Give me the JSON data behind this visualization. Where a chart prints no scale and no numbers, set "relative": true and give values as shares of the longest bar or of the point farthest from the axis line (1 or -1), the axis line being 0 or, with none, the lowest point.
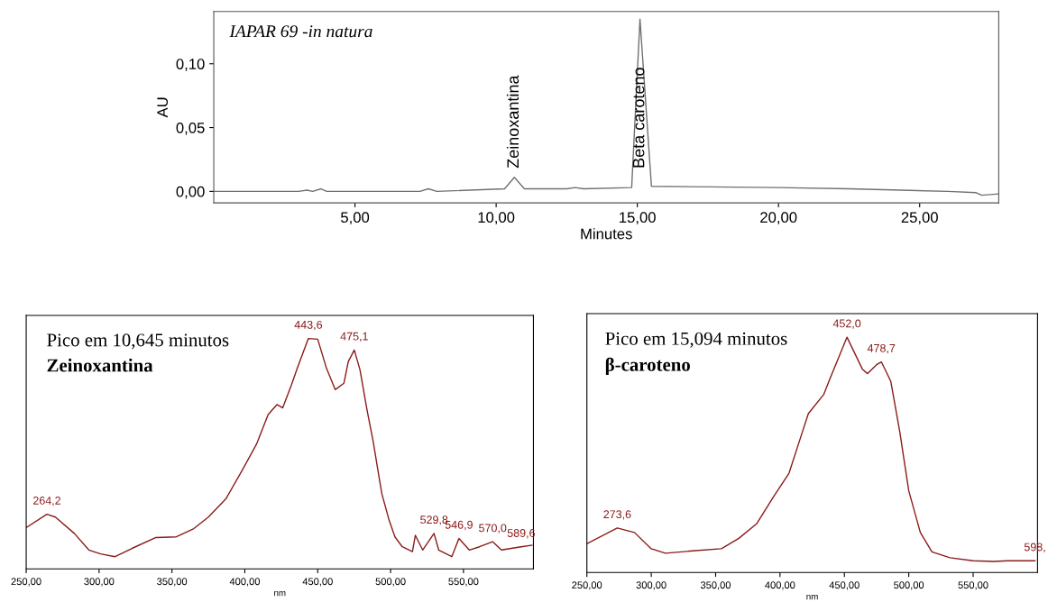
{
  "chart_data": [
    {
      "type": "line",
      "title": "IAPAR 69 -in natura",
      "xlabel": "Minutes",
      "ylabel": "AU",
      "xlim": [
        0,
        27.8
      ],
      "ylim": [
        -0.009,
        0.141
      ],
      "xticks": [
        {
          "value": 5,
          "label": "5,00"
        },
        {
          "value": 10,
          "label": "10,00"
        },
        {
          "value": 15,
          "label": "15,00"
        },
        {
          "value": 20,
          "label": "20,00"
        },
        {
          "value": 25,
          "label": "25,00"
        }
      ],
      "yticks": [
        {
          "value": 0,
          "label": "0,00"
        },
        {
          "value": 0.05,
          "label": "0,05"
        },
        {
          "value": 0.1,
          "label": "0,10"
        }
      ],
      "grid": false,
      "legend": false,
      "series": [
        {
          "color": "#707070",
          "x": [
            0,
            3.0,
            3.3,
            3.5,
            3.8,
            4.0,
            7.3,
            7.6,
            7.9,
            10.3,
            10.645,
            11.0,
            12.5,
            12.8,
            13.1,
            14.8,
            15.094,
            15.5,
            20.0,
            22.5,
            26.0,
            27.0,
            27.2,
            27.8
          ],
          "values": [
            0.0,
            0.0,
            0.001,
            0.0,
            0.002,
            0.0,
            0.0,
            0.002,
            0.0,
            0.002,
            0.011,
            0.002,
            0.002,
            0.003,
            0.002,
            0.003,
            0.135,
            0.004,
            0.003,
            0.002,
            0.0,
            -0.001,
            -0.003,
            -0.002
          ]
        }
      ],
      "annotations": [
        {
          "text": "Zeinoxantina",
          "x": 10.645,
          "y": 0.011
        },
        {
          "text": "Beta caroteno",
          "x": 15.094,
          "y": 0.135
        }
      ]
    },
    {
      "type": "line",
      "title": "Pico em 10,645 minutos",
      "subtitle": "Zeinoxantina",
      "xlabel": "nm",
      "xlim": [
        250,
        598
      ],
      "relative": true,
      "tick_labels": "x",
      "grid": false,
      "legend": false,
      "xticks": [
        {
          "value": 250,
          "label": "250,00"
        },
        {
          "value": 300,
          "label": "300,00"
        },
        {
          "value": 350,
          "label": "350,00"
        },
        {
          "value": 400,
          "label": "400,00"
        },
        {
          "value": 450,
          "label": "450,00"
        },
        {
          "value": 500,
          "label": "500,00"
        },
        {
          "value": 550,
          "label": "550,00"
        }
      ],
      "series": [
        {
          "color": "#8b1a1a",
          "x": [
            250,
            264.2,
            270,
            283,
            293,
            301,
            311,
            322.6,
            339,
            353,
            365,
            375,
            387,
            398,
            408,
            416,
            422,
            426,
            432,
            436,
            443.6,
            450,
            456,
            462,
            468,
            471,
            475.1,
            479,
            484,
            488,
            491,
            494,
            499,
            503,
            508,
            515,
            517,
            522,
            529.8,
            533,
            542,
            546.9,
            554,
            561,
            570,
            576,
            589.6,
            597
          ],
          "values": [
            0.179,
            0.237,
            0.225,
            0.154,
            0.082,
            0.065,
            0.053,
            0.089,
            0.136,
            0.139,
            0.175,
            0.225,
            0.304,
            0.426,
            0.541,
            0.67,
            0.713,
            0.699,
            0.799,
            0.871,
            1.0,
            0.997,
            0.871,
            0.778,
            0.806,
            0.9,
            0.95,
            0.864,
            0.684,
            0.555,
            0.44,
            0.326,
            0.211,
            0.139,
            0.096,
            0.075,
            0.146,
            0.082,
            0.154,
            0.082,
            0.053,
            0.132,
            0.082,
            0.096,
            0.118,
            0.082,
            0.096,
            0.103
          ]
        }
      ],
      "annotations": [
        {
          "text": "264,2",
          "x": 264.2,
          "y": 0.237
        },
        {
          "text": "443,6",
          "x": 443.6,
          "y": 1.0
        },
        {
          "text": "475,1",
          "x": 475.1,
          "y": 0.95
        },
        {
          "text": "529,8",
          "x": 529.8,
          "y": 0.154
        },
        {
          "text": "546,9",
          "x": 546.9,
          "y": 0.132
        },
        {
          "text": "570,0",
          "x": 570,
          "y": 0.118
        },
        {
          "text": "589,6",
          "x": 589.6,
          "y": 0.096
        }
      ]
    },
    {
      "type": "line",
      "title": "Pico em 15,094 minutos",
      "subtitle": "β-caroteno",
      "xlabel": "nm",
      "xlim": [
        250,
        600
      ],
      "relative": true,
      "tick_labels": "x",
      "grid": false,
      "legend": false,
      "xticks": [
        {
          "value": 250,
          "label": "250,00"
        },
        {
          "value": 300,
          "label": "300,00"
        },
        {
          "value": 350,
          "label": "350,00"
        },
        {
          "value": 400,
          "label": "400,00"
        },
        {
          "value": 450,
          "label": "450,00"
        },
        {
          "value": 500,
          "label": "500,00"
        },
        {
          "value": 550,
          "label": "550,00"
        }
      ],
      "series": [
        {
          "color": "#8b1a1a",
          "x": [
            250,
            273.6,
            287,
            300,
            311,
            332,
            354.5,
            368,
            382,
            395,
            407,
            416,
            422,
            434,
            439,
            452,
            464,
            468,
            475,
            478.7,
            486,
            493,
            500,
            509,
            518,
            532,
            550,
            566,
            577,
            592,
            598
          ],
          "values": [
            0.122,
            0.189,
            0.17,
            0.101,
            0.082,
            0.092,
            0.101,
            0.145,
            0.208,
            0.322,
            0.422,
            0.574,
            0.675,
            0.757,
            0.826,
            1.0,
            0.864,
            0.845,
            0.883,
            0.895,
            0.813,
            0.599,
            0.347,
            0.17,
            0.088,
            0.063,
            0.05,
            0.047,
            0.05,
            0.05,
            0.05
          ]
        }
      ],
      "annotations": [
        {
          "text": "273,6",
          "x": 273.6,
          "y": 0.189
        },
        {
          "text": "452,0",
          "x": 452,
          "y": 1.0
        },
        {
          "text": "478,7",
          "x": 478.7,
          "y": 0.895
        },
        {
          "text": "598,",
          "x": 598,
          "y": 0.05
        }
      ]
    }
  ]
}
